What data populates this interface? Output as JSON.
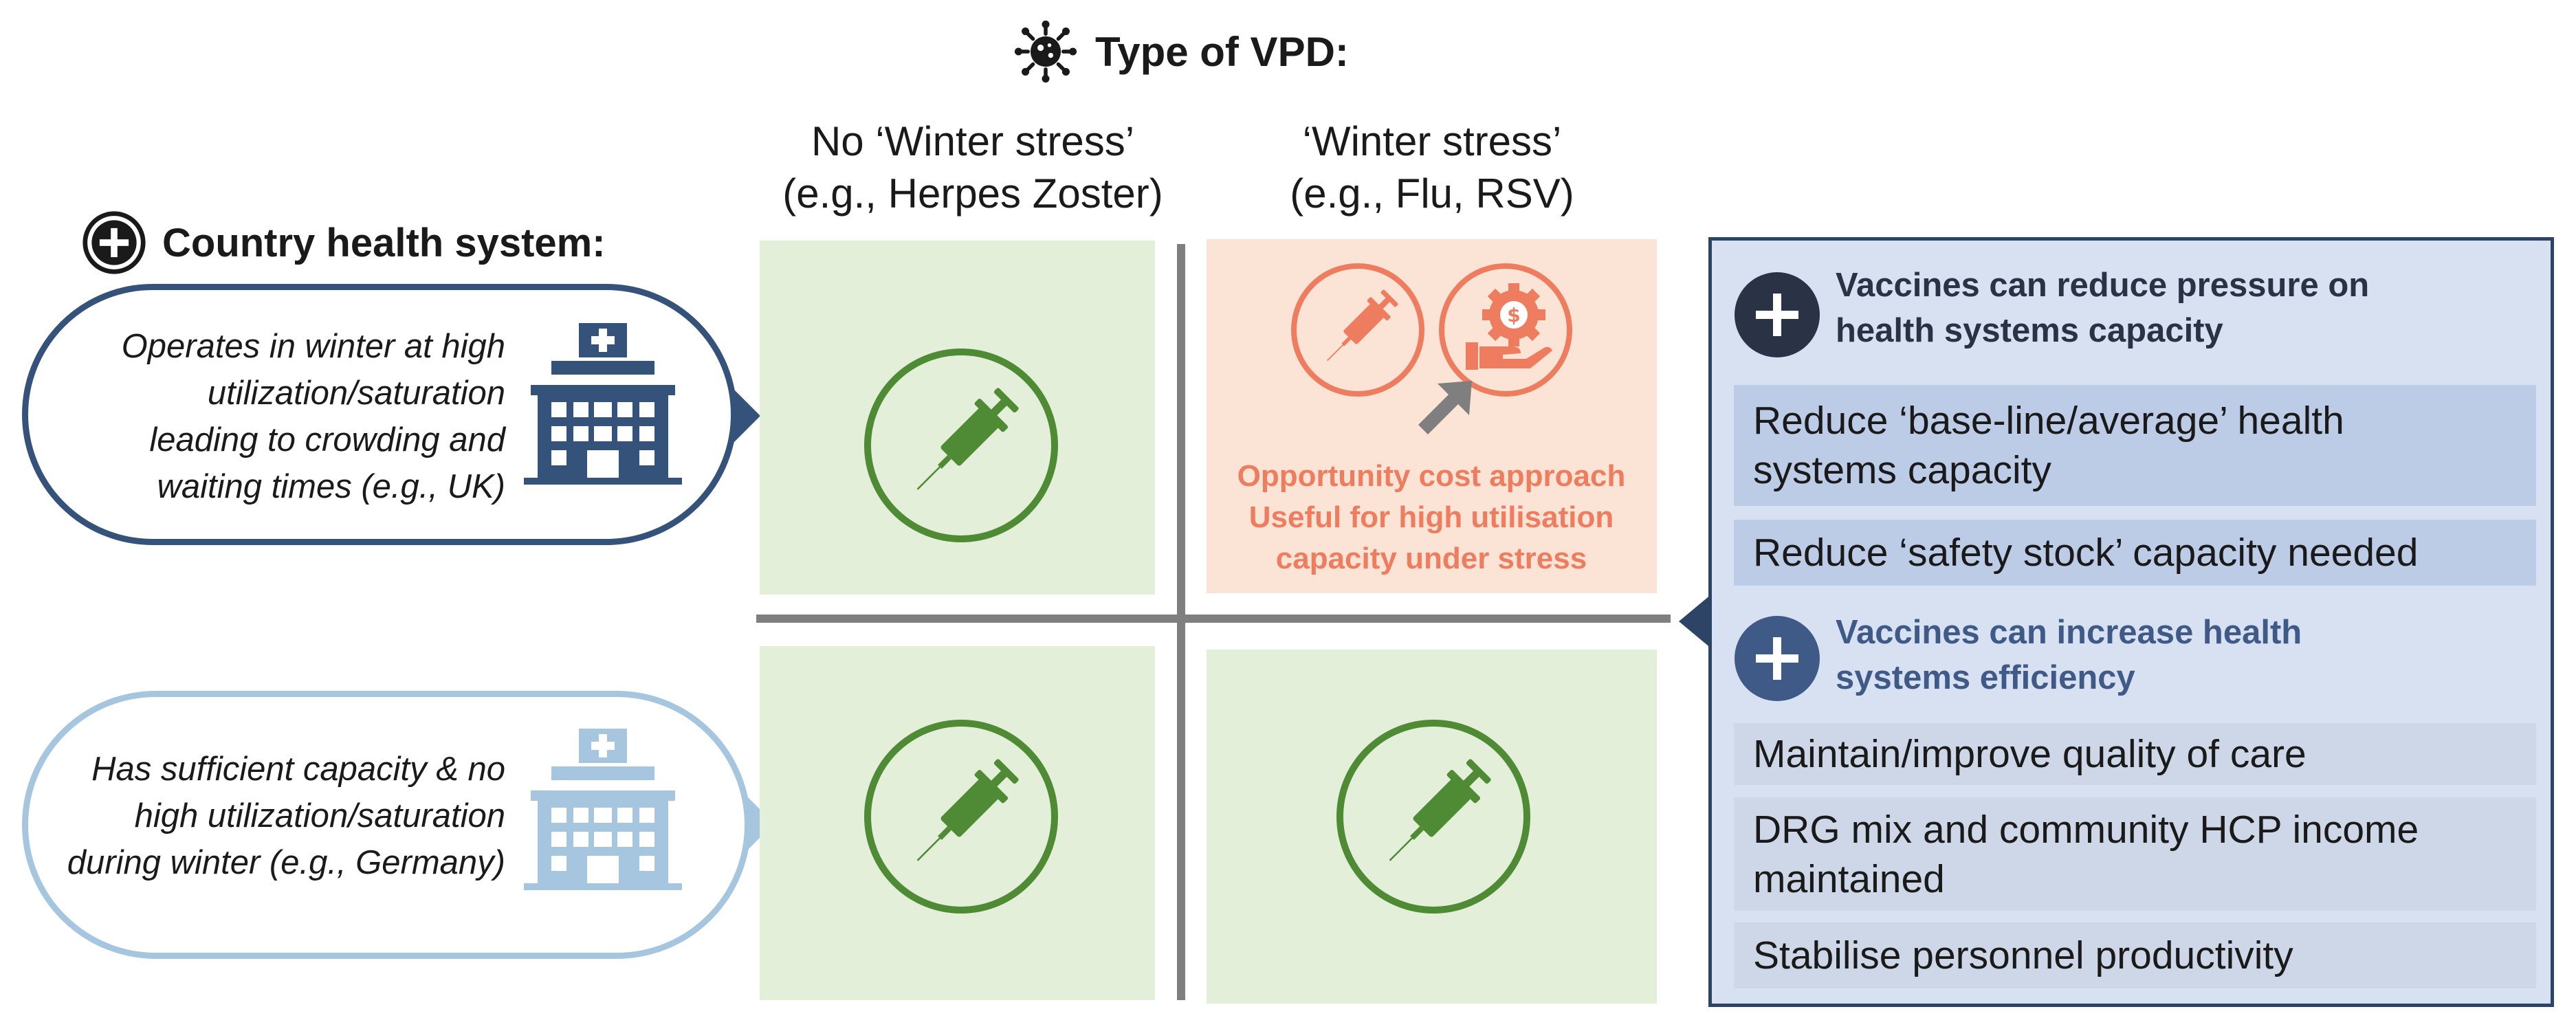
{
  "header": {
    "title": "Type of VPD:",
    "icon": "virus-icon"
  },
  "columns": [
    {
      "line1": "No ‘Winter stress’",
      "line2": "(e.g., Herpes Zoster)"
    },
    {
      "line1": "‘Winter stress’",
      "line2": "(e.g., Flu, RSV)"
    }
  ],
  "health_system": {
    "title": "Country health system:",
    "icon": "plus-circle-icon",
    "rows": [
      {
        "lines": [
          "Operates in winter at high",
          "utilization/saturation",
          "leading to crowding and",
          "waiting times (e.g., UK)"
        ],
        "icon": "hospital-icon"
      },
      {
        "lines": [
          "Has sufficient capacity & no",
          "high utilization/saturation",
          "during winter (e.g., Germany)"
        ],
        "icon": "hospital-icon"
      }
    ]
  },
  "quadrant": {
    "highlight_lines": [
      "Opportunity cost approach",
      "Useful for high utilisation",
      "capacity under stress"
    ],
    "icons": [
      "syringe-icon",
      "money-gear-icon",
      "arrow-up-right-icon"
    ]
  },
  "panel": {
    "sections": [
      {
        "heading": [
          "Vaccines can reduce pressure on",
          "health systems capacity"
        ],
        "items": [
          {
            "lines": [
              "Reduce ‘base-line/average’ health",
              "systems capacity"
            ]
          },
          {
            "lines": [
              "Reduce ‘safety stock’ capacity needed"
            ]
          }
        ]
      },
      {
        "heading": [
          "Vaccines can increase health",
          "systems efficiency"
        ],
        "items": [
          {
            "lines": [
              "Maintain/improve quality of care"
            ]
          },
          {
            "lines": [
              "DRG mix and community HCP income",
              "maintained"
            ]
          },
          {
            "lines": [
              "Stabilise personnel productivity"
            ]
          }
        ]
      }
    ]
  },
  "colors": {
    "navy": "#34527a",
    "light_blue": "#a6c5df",
    "green": "#4f8a35",
    "orange": "#ee7d5f",
    "panel_bg": "#d7e1f1"
  }
}
